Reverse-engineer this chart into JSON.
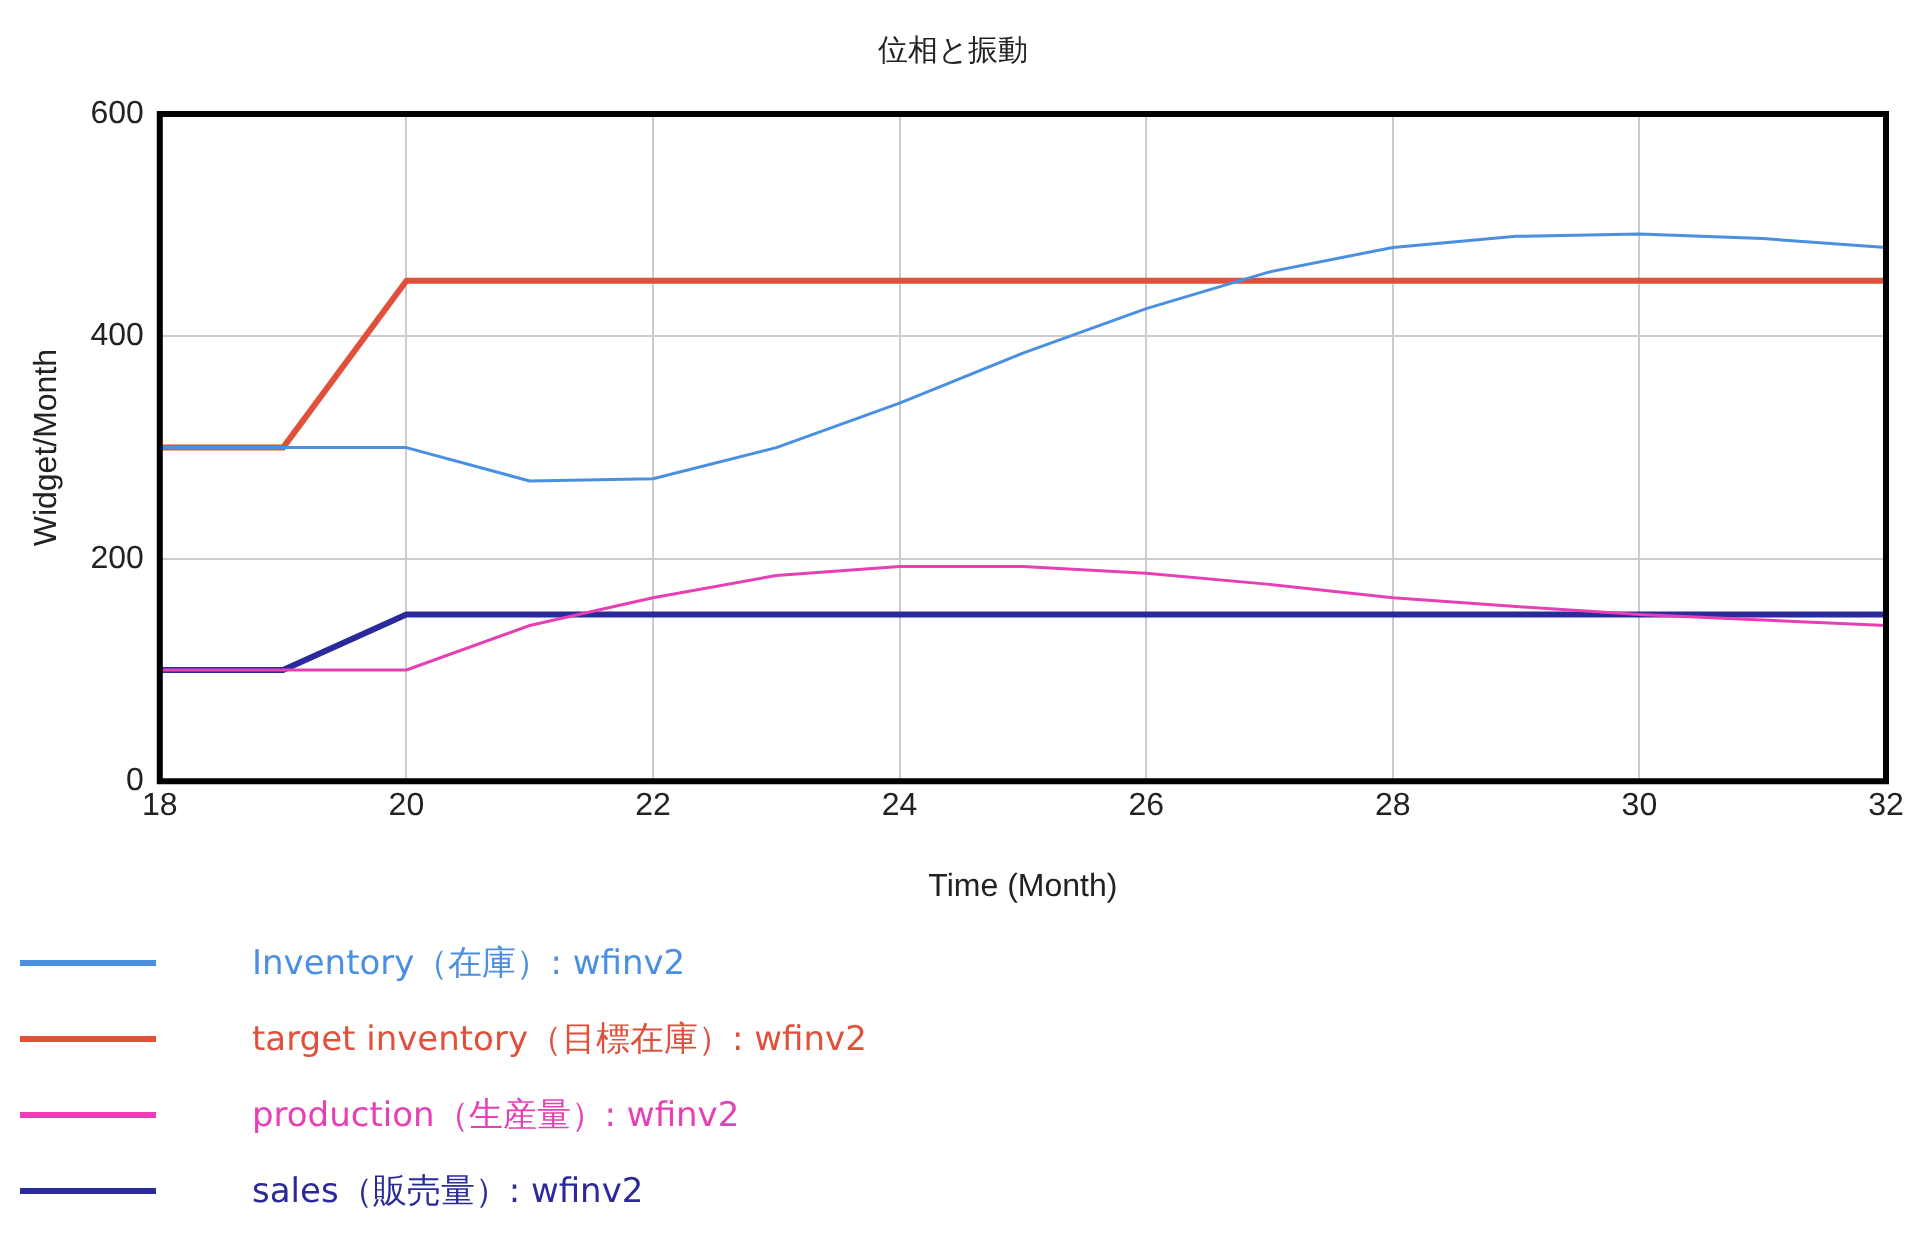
{
  "chart_data": {
    "type": "line",
    "title": "位相と振動",
    "xlabel": "Time (Month)",
    "ylabel": "Widget/Month",
    "x": [
      18,
      19,
      20,
      21,
      22,
      23,
      24,
      25,
      26,
      27,
      28,
      29,
      30,
      31,
      32
    ],
    "xlim": [
      18,
      32
    ],
    "xticks": [
      18,
      20,
      22,
      24,
      26,
      28,
      30,
      32
    ],
    "ylim": [
      0,
      600
    ],
    "yticks": [
      0,
      200,
      400,
      600
    ],
    "grid": true,
    "legend": "bottom",
    "marker": "none",
    "line_style": "solid",
    "series": [
      {
        "name": "Inventory（在庫）: wfinv2",
        "color": "#4a8fe0",
        "values": [
          300,
          300,
          300,
          270,
          272,
          300,
          340,
          385,
          425,
          458,
          480,
          490,
          492,
          488,
          480
        ]
      },
      {
        "name": "target inventory（目標在庫）: wfinv2",
        "color": "#e0503a",
        "values": [
          300,
          300,
          450,
          450,
          450,
          450,
          450,
          450,
          450,
          450,
          450,
          450,
          450,
          450,
          450
        ]
      },
      {
        "name": "production（生産量）: wfinv2",
        "color": "#e640b4",
        "values": [
          100,
          100,
          100,
          140,
          165,
          185,
          193,
          193,
          187,
          177,
          165,
          157,
          150,
          145,
          140
        ]
      },
      {
        "name": "sales（販売量）: wfinv2",
        "color": "#2a2a9a",
        "values": [
          100,
          100,
          150,
          150,
          150,
          150,
          150,
          150,
          150,
          150,
          150,
          150,
          150,
          150,
          150
        ]
      }
    ]
  }
}
